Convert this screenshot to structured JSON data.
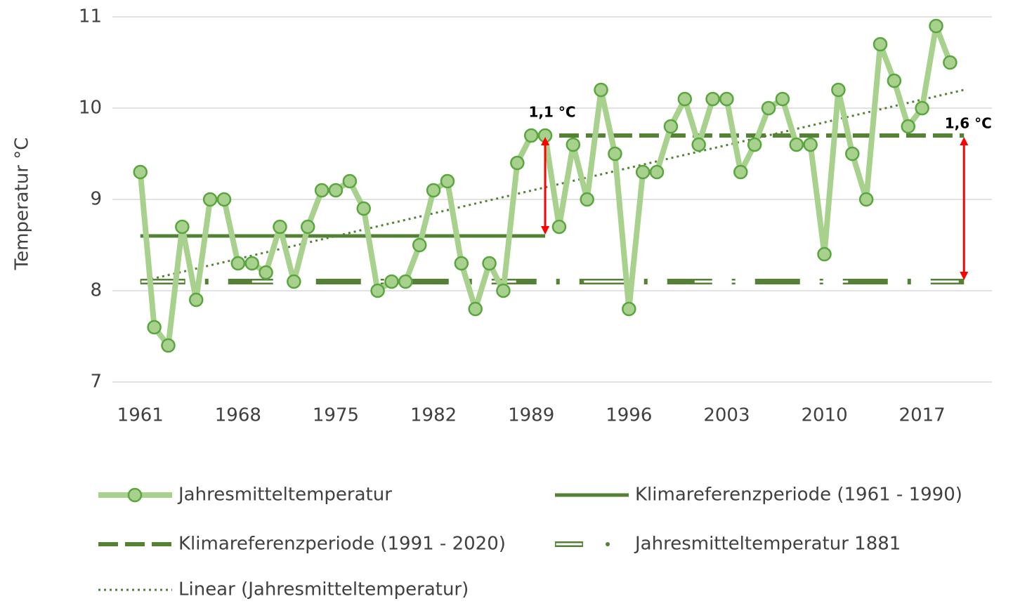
{
  "chart_data": {
    "type": "line",
    "ylabel": "Temperatur °C",
    "xlim": [
      1959,
      2022
    ],
    "xticks": [
      1961,
      1968,
      1975,
      1982,
      1989,
      1996,
      2003,
      2010,
      2017
    ],
    "ylim": [
      7,
      11
    ],
    "yticks": [
      7,
      8,
      9,
      10,
      11
    ],
    "grid": true,
    "series": [
      {
        "name": "Jahresmitteltemperatur",
        "color": "#a9d18e",
        "marker_edge": "#5aa63e",
        "style": "solid-markers",
        "x": [
          1961,
          1962,
          1963,
          1964,
          1965,
          1966,
          1967,
          1968,
          1969,
          1970,
          1971,
          1972,
          1973,
          1974,
          1975,
          1976,
          1977,
          1978,
          1979,
          1980,
          1981,
          1982,
          1983,
          1984,
          1985,
          1986,
          1987,
          1988,
          1989,
          1990,
          1991,
          1992,
          1993,
          1994,
          1995,
          1996,
          1997,
          1998,
          1999,
          2000,
          2001,
          2002,
          2003,
          2004,
          2005,
          2006,
          2007,
          2008,
          2009,
          2010,
          2011,
          2012,
          2013,
          2014,
          2015,
          2016,
          2017,
          2018,
          2019
        ],
        "values": [
          9.3,
          7.6,
          7.4,
          8.7,
          7.9,
          9.0,
          9.0,
          8.3,
          8.3,
          8.2,
          8.7,
          8.1,
          8.7,
          9.1,
          9.1,
          9.2,
          8.9,
          8.0,
          8.1,
          8.1,
          8.5,
          9.1,
          9.2,
          8.3,
          7.8,
          8.3,
          8.0,
          9.4,
          9.7,
          9.7,
          8.7,
          9.6,
          9.0,
          10.2,
          9.5,
          7.8,
          9.3,
          9.3,
          9.8,
          10.1,
          9.6,
          10.1,
          10.1,
          9.3,
          9.6,
          10.0,
          10.1,
          9.6,
          9.6,
          8.4,
          10.2,
          9.5,
          9.0,
          10.7,
          10.3,
          9.8,
          10.0,
          10.9,
          10.5
        ]
      },
      {
        "name": "Klimareferenzperiode (1961 - 1990)",
        "color": "#548235",
        "style": "solid",
        "x": [
          1961,
          1990
        ],
        "values": [
          8.6,
          8.6
        ]
      },
      {
        "name": "Klimareferenzperiode (1991 - 2020)",
        "color": "#548235",
        "style": "dashed",
        "x": [
          1991,
          2020
        ],
        "values": [
          9.7,
          9.7
        ]
      },
      {
        "name": "Jahresmitteltemperatur 1881",
        "color": "#548235",
        "style": "double-dash-dot",
        "x": [
          1961,
          2020
        ],
        "values": [
          8.1,
          8.1
        ]
      },
      {
        "name": "Linear (Jahresmitteltemperatur)",
        "color": "#548235",
        "style": "dotted",
        "x": [
          1961,
          2020
        ],
        "values": [
          8.1,
          10.2
        ]
      }
    ],
    "annotations": [
      "1,1 °C",
      "1,6 °C"
    ],
    "annotation_color": "#ff0000"
  }
}
